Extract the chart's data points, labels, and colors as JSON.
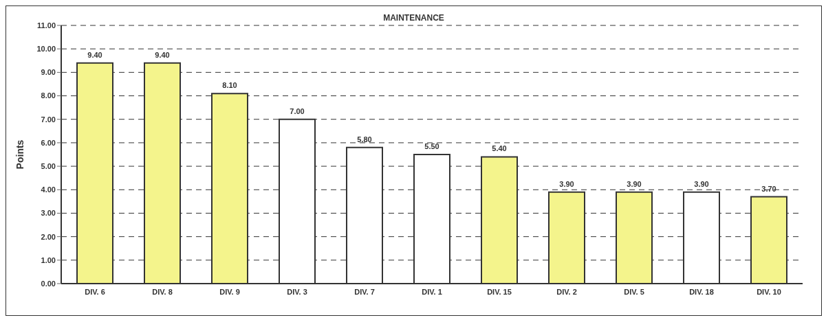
{
  "chart_data": {
    "type": "bar",
    "title": "MAINTENANCE",
    "ylabel": "Points",
    "categories": [
      "DIV. 6",
      "DIV. 8",
      "DIV. 9",
      "DIV. 3",
      "DIV. 7",
      "DIV. 1",
      "DIV. 15",
      "DIV. 2",
      "DIV. 5",
      "DIV. 18",
      "DIV. 10"
    ],
    "values": [
      9.4,
      9.4,
      8.1,
      7.0,
      5.8,
      5.5,
      5.4,
      3.9,
      3.9,
      3.9,
      3.7
    ],
    "value_labels": [
      "9.40",
      "9.40",
      "8.10",
      "7.00",
      "5.80",
      "5.50",
      "5.40",
      "3.90",
      "3.90",
      "3.90",
      "3.70"
    ],
    "colors": [
      "#f4f48c",
      "#f4f48c",
      "#f4f48c",
      "#ffffff",
      "#ffffff",
      "#ffffff",
      "#f4f48c",
      "#f4f48c",
      "#f4f48c",
      "#ffffff",
      "#f4f48c"
    ],
    "ylim": [
      0,
      11
    ],
    "yticks": [
      {
        "value": 0,
        "label": "0.00"
      },
      {
        "value": 1,
        "label": "1.00"
      },
      {
        "value": 2,
        "label": "2.00"
      },
      {
        "value": 3,
        "label": "3.00"
      },
      {
        "value": 4,
        "label": "4.00"
      },
      {
        "value": 5,
        "label": "5.00"
      },
      {
        "value": 6,
        "label": "6.00"
      },
      {
        "value": 7,
        "label": "7.00"
      },
      {
        "value": 8,
        "label": "8.00"
      },
      {
        "value": 9,
        "label": "9.00"
      },
      {
        "value": 10,
        "label": "10.00"
      },
      {
        "value": 11,
        "label": "11.00"
      }
    ],
    "grid": "y",
    "legend": false
  }
}
